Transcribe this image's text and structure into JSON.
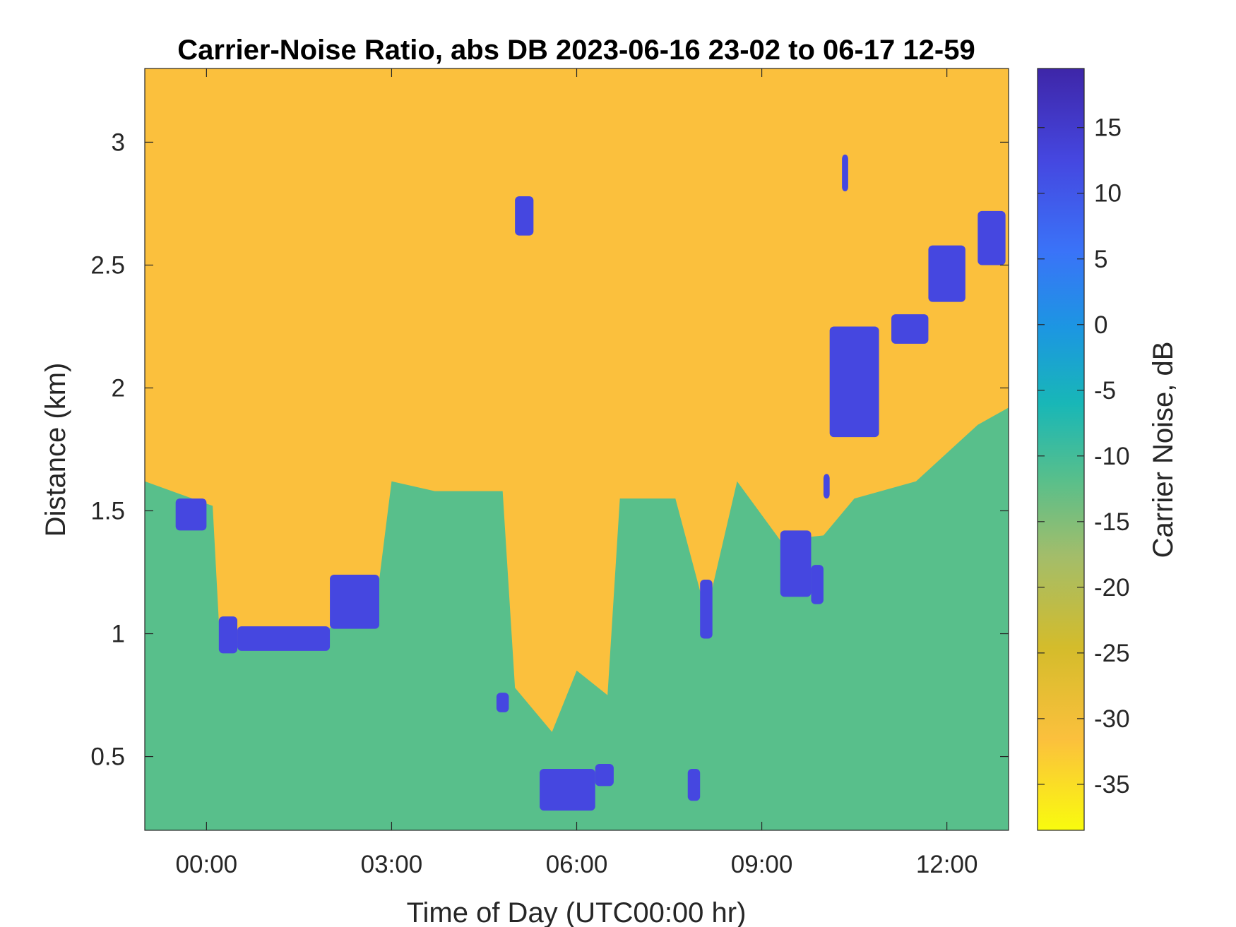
{
  "chart_data": {
    "type": "heatmap",
    "title": "Carrier-Noise Ratio, abs DB 2023-06-16 23-02 to 06-17 12-59",
    "xlabel": "Time of Day (UTC00:00 hr)",
    "ylabel": "Distance (km)",
    "xlim": [
      -1.0,
      13.0
    ],
    "ylim": [
      0.2,
      3.3
    ],
    "x_ticks": [
      0,
      3,
      6,
      9,
      12
    ],
    "x_tick_labels": [
      "00:00",
      "03:00",
      "06:00",
      "09:00",
      "12:00"
    ],
    "y_ticks": [
      0.5,
      1,
      1.5,
      2,
      2.5,
      3
    ],
    "y_tick_labels": [
      "0.5",
      "1",
      "1.5",
      "2",
      "2.5",
      "3"
    ],
    "colorbar": {
      "label": "Carrier Noise, dB",
      "range": [
        -38.5,
        19.5
      ],
      "ticks": [
        -35,
        -30,
        -25,
        -20,
        -15,
        -10,
        -5,
        0,
        5,
        10,
        15
      ],
      "tick_labels": [
        "-35",
        "-30",
        "-25",
        "-20",
        "-15",
        "-10",
        "-5",
        "0",
        "5",
        "10",
        "15"
      ],
      "colormap": "parula",
      "colors": [
        "#f9fb0e",
        "#fbc03d",
        "#d4bc2b",
        "#a3bd6a",
        "#58bf8b",
        "#18b7b7",
        "#1c96e2",
        "#3a73f8",
        "#4547e0",
        "#3e26a8"
      ]
    },
    "background_value_db": -30,
    "boundary_layer_top_km": [
      {
        "x": -1.0,
        "y": 1.62
      },
      {
        "x": 0.1,
        "y": 1.52
      },
      {
        "x": 0.2,
        "y": 1.05
      },
      {
        "x": 0.5,
        "y": 0.97
      },
      {
        "x": 1.5,
        "y": 0.98
      },
      {
        "x": 2.3,
        "y": 1.05
      },
      {
        "x": 2.8,
        "y": 1.22
      },
      {
        "x": 3.0,
        "y": 1.62
      },
      {
        "x": 3.7,
        "y": 1.58
      },
      {
        "x": 4.8,
        "y": 1.58
      },
      {
        "x": 5.0,
        "y": 0.78
      },
      {
        "x": 5.6,
        "y": 0.6
      },
      {
        "x": 6.0,
        "y": 0.85
      },
      {
        "x": 6.5,
        "y": 0.75
      },
      {
        "x": 6.7,
        "y": 1.55
      },
      {
        "x": 7.6,
        "y": 1.55
      },
      {
        "x": 8.1,
        "y": 1.08
      },
      {
        "x": 8.6,
        "y": 1.62
      },
      {
        "x": 9.3,
        "y": 1.38
      },
      {
        "x": 10.0,
        "y": 1.4
      },
      {
        "x": 10.5,
        "y": 1.55
      },
      {
        "x": 11.5,
        "y": 1.62
      },
      {
        "x": 12.5,
        "y": 1.85
      },
      {
        "x": 13.0,
        "y": 1.92
      }
    ],
    "cloud_returns_km": [
      {
        "x0": -0.5,
        "x1": 0.0,
        "y0": 1.42,
        "y1": 1.55
      },
      {
        "x0": 0.2,
        "x1": 0.5,
        "y0": 0.92,
        "y1": 1.07
      },
      {
        "x0": 0.5,
        "x1": 2.0,
        "y0": 0.93,
        "y1": 1.03
      },
      {
        "x0": 2.0,
        "x1": 2.8,
        "y0": 1.02,
        "y1": 1.24
      },
      {
        "x0": 4.7,
        "x1": 4.9,
        "y0": 0.68,
        "y1": 0.76
      },
      {
        "x0": 5.0,
        "x1": 5.3,
        "y0": 2.62,
        "y1": 2.78
      },
      {
        "x0": 5.4,
        "x1": 6.3,
        "y0": 0.28,
        "y1": 0.45
      },
      {
        "x0": 6.3,
        "x1": 6.6,
        "y0": 0.38,
        "y1": 0.47
      },
      {
        "x0": 7.8,
        "x1": 8.0,
        "y0": 0.32,
        "y1": 0.45
      },
      {
        "x0": 8.0,
        "x1": 8.2,
        "y0": 0.98,
        "y1": 1.22
      },
      {
        "x0": 9.3,
        "x1": 9.8,
        "y0": 1.15,
        "y1": 1.42
      },
      {
        "x0": 9.8,
        "x1": 10.0,
        "y0": 1.12,
        "y1": 1.28
      },
      {
        "x0": 10.0,
        "x1": 10.1,
        "y0": 1.55,
        "y1": 1.65
      },
      {
        "x0": 10.3,
        "x1": 10.4,
        "y0": 2.8,
        "y1": 2.95
      },
      {
        "x0": 10.1,
        "x1": 10.9,
        "y0": 1.8,
        "y1": 2.25
      },
      {
        "x0": 11.1,
        "x1": 11.7,
        "y0": 2.18,
        "y1": 2.3
      },
      {
        "x0": 11.7,
        "x1": 12.3,
        "y0": 2.35,
        "y1": 2.58
      },
      {
        "x0": 12.5,
        "x1": 12.95,
        "y0": 2.5,
        "y1": 2.72
      }
    ]
  }
}
